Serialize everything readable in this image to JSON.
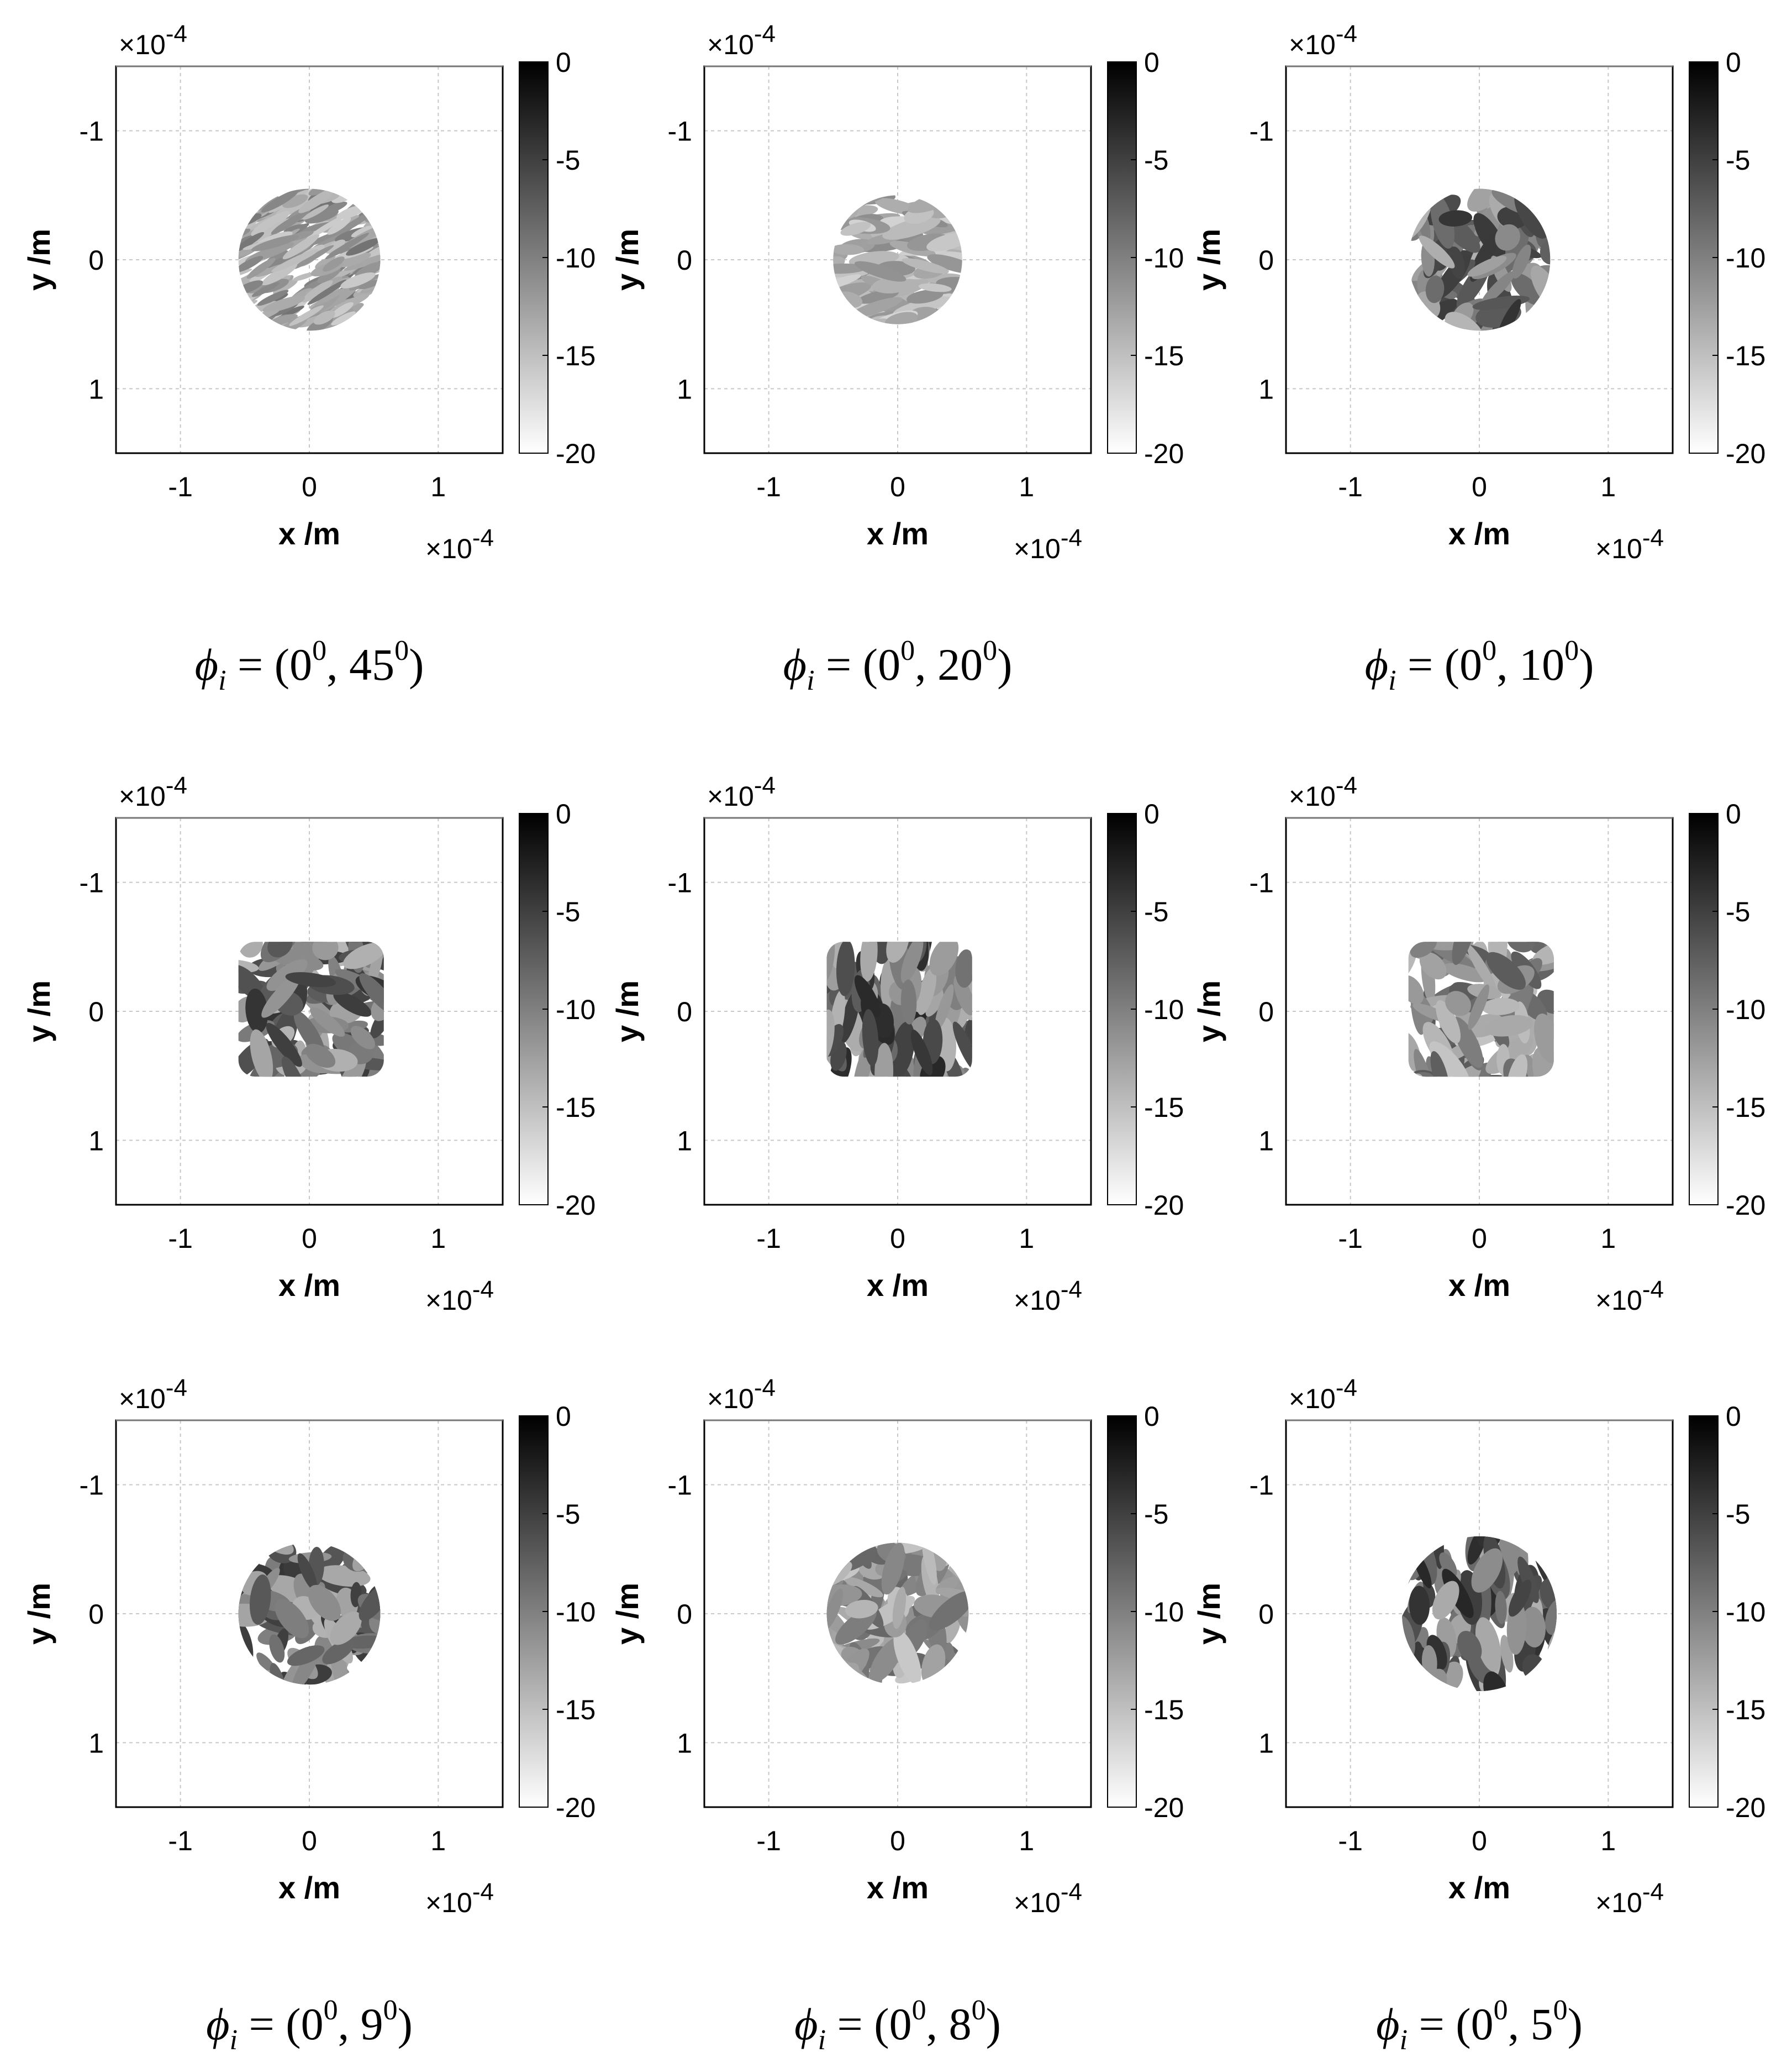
{
  "chart_data": [
    {
      "type": "heatmap",
      "caption_prefix": "ϕ",
      "caption_sub": "i",
      "caption_angles": [
        "0",
        "45"
      ],
      "caption_sup": "0",
      "xlabel": "x /m",
      "ylabel": "y /m",
      "x_ticks": [
        "-1",
        "0",
        "1"
      ],
      "y_ticks": [
        "-1",
        "0",
        "1"
      ],
      "x_exponent": "×10",
      "y_exponent": "×10",
      "exponent_power": "-4",
      "xlim": [
        -0.00015,
        0.00015
      ],
      "ylim": [
        0.00015,
        -0.00015
      ],
      "y_reversed": true,
      "grid": true,
      "colorbar": {
        "ticks": [
          "0",
          "-5",
          "-10",
          "-15",
          "-20"
        ],
        "range": [
          -20,
          0
        ],
        "colormap": "gray-reversed"
      },
      "spot": {
        "shape": "circle",
        "radius": 5.5e-05,
        "intensity": 0.55,
        "speckle_scale": "fine",
        "speckle_orientation": "diagonal"
      }
    },
    {
      "type": "heatmap",
      "caption_prefix": "ϕ",
      "caption_sub": "i",
      "caption_angles": [
        "0",
        "20"
      ],
      "caption_sup": "0",
      "xlabel": "x /m",
      "ylabel": "y /m",
      "x_ticks": [
        "-1",
        "0",
        "1"
      ],
      "y_ticks": [
        "-1",
        "0",
        "1"
      ],
      "x_exponent": "×10",
      "y_exponent": "×10",
      "exponent_power": "-4",
      "xlim": [
        -0.00015,
        0.00015
      ],
      "ylim": [
        0.00015,
        -0.00015
      ],
      "y_reversed": true,
      "grid": true,
      "colorbar": {
        "ticks": [
          "0",
          "-5",
          "-10",
          "-15",
          "-20"
        ],
        "range": [
          -20,
          0
        ],
        "colormap": "gray-reversed"
      },
      "spot": {
        "shape": "circle",
        "radius": 5e-05,
        "intensity": 0.45,
        "speckle_scale": "medium",
        "speckle_orientation": "horizontal"
      }
    },
    {
      "type": "heatmap",
      "caption_prefix": "ϕ",
      "caption_sub": "i",
      "caption_angles": [
        "0",
        "10"
      ],
      "caption_sup": "0",
      "xlabel": "x /m",
      "ylabel": "y /m",
      "x_ticks": [
        "-1",
        "0",
        "1"
      ],
      "y_ticks": [
        "-1",
        "0",
        "1"
      ],
      "x_exponent": "×10",
      "y_exponent": "×10",
      "exponent_power": "-4",
      "xlim": [
        -0.00015,
        0.00015
      ],
      "ylim": [
        0.00015,
        -0.00015
      ],
      "y_reversed": true,
      "grid": true,
      "colorbar": {
        "ticks": [
          "0",
          "-5",
          "-10",
          "-15",
          "-20"
        ],
        "range": [
          -20,
          0
        ],
        "colormap": "gray-reversed"
      },
      "spot": {
        "shape": "circle",
        "radius": 5.5e-05,
        "intensity": 0.8,
        "speckle_scale": "coarse",
        "speckle_orientation": "random"
      }
    },
    {
      "type": "heatmap",
      "caption_prefix": "",
      "caption_sub": "",
      "caption_angles": [],
      "caption_sup": "",
      "xlabel": "x /m",
      "ylabel": "y /m",
      "x_ticks": [
        "-1",
        "0",
        "1"
      ],
      "y_ticks": [
        "-1",
        "0",
        "1"
      ],
      "x_exponent": "×10",
      "y_exponent": "×10",
      "exponent_power": "-4",
      "xlim": [
        -0.00015,
        0.00015
      ],
      "ylim": [
        0.00015,
        -0.00015
      ],
      "y_reversed": true,
      "grid": true,
      "colorbar": {
        "ticks": [
          "0",
          "-5",
          "-10",
          "-15",
          "-20"
        ],
        "range": [
          -20,
          0
        ],
        "colormap": "gray-reversed"
      },
      "spot": {
        "shape": "square",
        "radius": 5.5e-05,
        "intensity": 0.8,
        "speckle_scale": "coarse",
        "speckle_orientation": "random"
      }
    },
    {
      "type": "heatmap",
      "caption_prefix": "",
      "caption_sub": "",
      "caption_angles": [],
      "caption_sup": "",
      "xlabel": "x /m",
      "ylabel": "y /m",
      "x_ticks": [
        "-1",
        "0",
        "1"
      ],
      "y_ticks": [
        "-1",
        "0",
        "1"
      ],
      "x_exponent": "×10",
      "y_exponent": "×10",
      "exponent_power": "-4",
      "xlim": [
        -0.00015,
        0.00015
      ],
      "ylim": [
        0.00015,
        -0.00015
      ],
      "y_reversed": true,
      "grid": true,
      "colorbar": {
        "ticks": [
          "0",
          "-5",
          "-10",
          "-15",
          "-20"
        ],
        "range": [
          -20,
          0
        ],
        "colormap": "gray-reversed"
      },
      "spot": {
        "shape": "square",
        "radius": 5.5e-05,
        "intensity": 0.85,
        "speckle_scale": "coarse",
        "speckle_orientation": "vertical"
      }
    },
    {
      "type": "heatmap",
      "caption_prefix": "",
      "caption_sub": "",
      "caption_angles": [],
      "caption_sup": "",
      "xlabel": "x /m",
      "ylabel": "y /m",
      "x_ticks": [
        "-1",
        "0",
        "1"
      ],
      "y_ticks": [
        "-1",
        "0",
        "1"
      ],
      "x_exponent": "×10",
      "y_exponent": "×10",
      "exponent_power": "-4",
      "xlim": [
        -0.00015,
        0.00015
      ],
      "ylim": [
        0.00015,
        -0.00015
      ],
      "y_reversed": true,
      "grid": true,
      "colorbar": {
        "ticks": [
          "0",
          "-5",
          "-10",
          "-15",
          "-20"
        ],
        "range": [
          -20,
          0
        ],
        "colormap": "gray-reversed"
      },
      "spot": {
        "shape": "square",
        "radius": 5.5e-05,
        "intensity": 0.65,
        "speckle_scale": "coarse",
        "speckle_orientation": "random"
      }
    },
    {
      "type": "heatmap",
      "caption_prefix": "ϕ",
      "caption_sub": "i",
      "caption_angles": [
        "0",
        "9"
      ],
      "caption_sup": "0",
      "xlabel": "x /m",
      "ylabel": "y /m",
      "x_ticks": [
        "-1",
        "0",
        "1"
      ],
      "y_ticks": [
        "-1",
        "0",
        "1"
      ],
      "x_exponent": "×10",
      "y_exponent": "×10",
      "exponent_power": "-4",
      "xlim": [
        -0.00015,
        0.00015
      ],
      "ylim": [
        0.00015,
        -0.00015
      ],
      "y_reversed": true,
      "grid": true,
      "colorbar": {
        "ticks": [
          "0",
          "-5",
          "-10",
          "-15",
          "-20"
        ],
        "range": [
          -20,
          0
        ],
        "colormap": "gray-reversed"
      },
      "spot": {
        "shape": "circle",
        "radius": 5.5e-05,
        "intensity": 0.8,
        "speckle_scale": "coarse",
        "speckle_orientation": "random"
      }
    },
    {
      "type": "heatmap",
      "caption_prefix": "ϕ",
      "caption_sub": "i",
      "caption_angles": [
        "0",
        "8"
      ],
      "caption_sup": "0",
      "xlabel": "x /m",
      "ylabel": "y /m",
      "x_ticks": [
        "-1",
        "0",
        "1"
      ],
      "y_ticks": [
        "-1",
        "0",
        "1"
      ],
      "x_exponent": "×10",
      "y_exponent": "×10",
      "exponent_power": "-4",
      "xlim": [
        -0.00015,
        0.00015
      ],
      "ylim": [
        0.00015,
        -0.00015
      ],
      "y_reversed": true,
      "grid": true,
      "colorbar": {
        "ticks": [
          "0",
          "-5",
          "-10",
          "-15",
          "-20"
        ],
        "range": [
          -20,
          0
        ],
        "colormap": "gray-reversed"
      },
      "spot": {
        "shape": "circle",
        "radius": 5.5e-05,
        "intensity": 0.6,
        "speckle_scale": "coarse",
        "speckle_orientation": "random"
      }
    },
    {
      "type": "heatmap",
      "caption_prefix": "ϕ",
      "caption_sub": "i",
      "caption_angles": [
        "0",
        "5"
      ],
      "caption_sup": "0",
      "xlabel": "x /m",
      "ylabel": "y /m",
      "x_ticks": [
        "-1",
        "0",
        "1"
      ],
      "y_ticks": [
        "-1",
        "0",
        "1"
      ],
      "x_exponent": "×10",
      "y_exponent": "×10",
      "exponent_power": "-4",
      "xlim": [
        -0.00015,
        0.00015
      ],
      "ylim": [
        0.00015,
        -0.00015
      ],
      "y_reversed": true,
      "grid": true,
      "colorbar": {
        "ticks": [
          "0",
          "-5",
          "-10",
          "-15",
          "-20"
        ],
        "range": [
          -20,
          0
        ],
        "colormap": "gray-reversed"
      },
      "spot": {
        "shape": "circle",
        "radius": 6e-05,
        "intensity": 0.85,
        "speckle_scale": "coarse",
        "speckle_orientation": "vertical"
      }
    }
  ]
}
